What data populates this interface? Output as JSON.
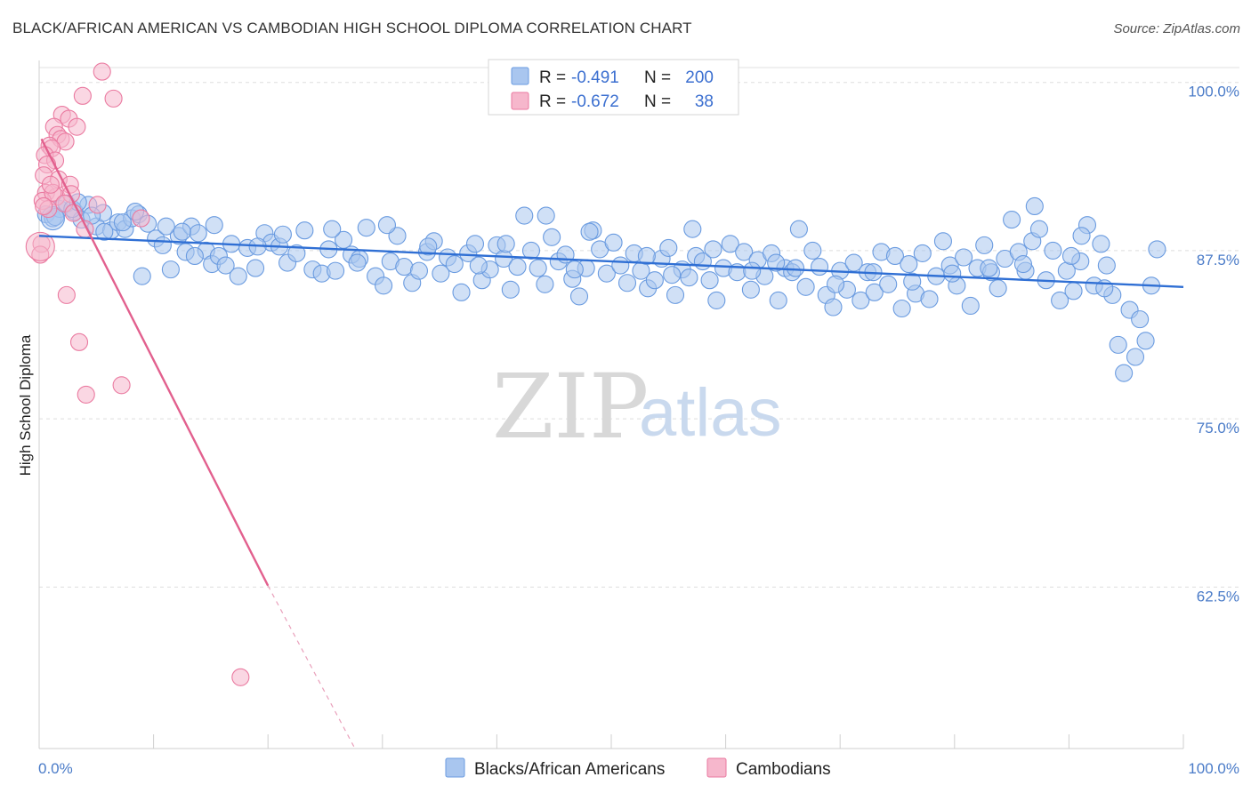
{
  "header": {
    "title": "BLACK/AFRICAN AMERICAN VS CAMBODIAN HIGH SCHOOL DIPLOMA CORRELATION CHART",
    "source": "Source: ZipAtlas.com"
  },
  "watermark": {
    "zip": "ZIP",
    "atlas": "atlas"
  },
  "legend_top": {
    "rows": [
      {
        "r_label": "R =",
        "r_value": "-0.491",
        "n_label": "N =",
        "n_value": "200",
        "color": "#a9c6ef"
      },
      {
        "r_label": "R =",
        "r_value": "-0.672",
        "n_label": "N =",
        "n_value": "38",
        "color": "#f6b7cc"
      }
    ]
  },
  "chart_data": {
    "type": "scatter",
    "title": "BLACK/AFRICAN AMERICAN VS CAMBODIAN HIGH SCHOOL DIPLOMA CORRELATION CHART",
    "xlabel": "",
    "ylabel": "High School Diploma",
    "xlim": [
      0,
      100
    ],
    "ylim": [
      50.5,
      101.5
    ],
    "x_tick_labels": [
      "0.0%",
      "100.0%"
    ],
    "y_ticks": [
      {
        "value": 100,
        "label": "100.0%"
      },
      {
        "value": 87.5,
        "label": "87.5%"
      },
      {
        "value": 75,
        "label": "75.0%"
      },
      {
        "value": 62.5,
        "label": "62.5%"
      }
    ],
    "grid": "horizontal-dashed",
    "legend_position": "top-center",
    "series": [
      {
        "name": "Blacks/African Americans",
        "color": "#6a9be0",
        "fill": "#a9c6ef",
        "trend": {
          "x0": 0,
          "y0": 88.6,
          "x1": 100,
          "y1": 84.8
        },
        "points": [
          [
            0.6,
            90.2
          ],
          [
            1.2,
            89.9
          ],
          [
            1.8,
            90.6
          ],
          [
            2.4,
            91.0
          ],
          [
            3.1,
            90.4
          ],
          [
            3.7,
            89.8
          ],
          [
            4.3,
            90.9
          ],
          [
            5.0,
            89.3
          ],
          [
            5.6,
            90.3
          ],
          [
            6.3,
            89.0
          ],
          [
            6.9,
            89.6
          ],
          [
            7.5,
            89.1
          ],
          [
            8.1,
            89.9
          ],
          [
            8.7,
            90.2
          ],
          [
            9.5,
            89.5
          ],
          [
            10.2,
            88.4
          ],
          [
            10.8,
            87.9
          ],
          [
            11.5,
            86.1
          ],
          [
            12.2,
            88.6
          ],
          [
            12.8,
            87.4
          ],
          [
            13.3,
            89.3
          ],
          [
            13.9,
            88.8
          ],
          [
            14.6,
            87.5
          ],
          [
            15.1,
            86.5
          ],
          [
            15.7,
            87.1
          ],
          [
            16.3,
            86.4
          ],
          [
            16.8,
            88.0
          ],
          [
            17.4,
            85.6
          ],
          [
            18.2,
            87.7
          ],
          [
            18.9,
            86.2
          ],
          [
            19.7,
            88.8
          ],
          [
            20.3,
            88.1
          ],
          [
            21.0,
            87.8
          ],
          [
            21.7,
            86.6
          ],
          [
            22.5,
            87.3
          ],
          [
            23.2,
            89.0
          ],
          [
            23.9,
            86.1
          ],
          [
            24.7,
            85.8
          ],
          [
            25.3,
            87.6
          ],
          [
            25.9,
            86.0
          ],
          [
            26.6,
            88.3
          ],
          [
            27.3,
            87.2
          ],
          [
            28.0,
            86.9
          ],
          [
            28.6,
            89.2
          ],
          [
            29.4,
            85.6
          ],
          [
            30.1,
            84.9
          ],
          [
            30.7,
            86.7
          ],
          [
            31.3,
            88.6
          ],
          [
            31.9,
            86.3
          ],
          [
            32.6,
            85.1
          ],
          [
            33.2,
            86.0
          ],
          [
            33.9,
            87.4
          ],
          [
            34.5,
            88.2
          ],
          [
            35.1,
            85.8
          ],
          [
            35.7,
            87.0
          ],
          [
            36.3,
            86.5
          ],
          [
            36.9,
            84.4
          ],
          [
            37.5,
            87.3
          ],
          [
            38.1,
            88.0
          ],
          [
            38.7,
            85.3
          ],
          [
            39.4,
            86.1
          ],
          [
            40.0,
            87.9
          ],
          [
            40.6,
            86.9
          ],
          [
            41.2,
            84.6
          ],
          [
            41.8,
            86.3
          ],
          [
            42.4,
            90.1
          ],
          [
            43.0,
            87.5
          ],
          [
            43.6,
            86.2
          ],
          [
            44.2,
            85.0
          ],
          [
            44.8,
            88.5
          ],
          [
            45.4,
            86.7
          ],
          [
            46.0,
            87.2
          ],
          [
            46.6,
            85.4
          ],
          [
            47.2,
            84.1
          ],
          [
            47.8,
            86.2
          ],
          [
            48.4,
            89.0
          ],
          [
            49.0,
            87.6
          ],
          [
            49.6,
            85.8
          ],
          [
            50.2,
            88.1
          ],
          [
            50.8,
            86.4
          ],
          [
            51.4,
            85.1
          ],
          [
            52.0,
            87.3
          ],
          [
            52.6,
            86.0
          ],
          [
            53.2,
            84.7
          ],
          [
            53.8,
            85.3
          ],
          [
            54.4,
            86.9
          ],
          [
            55.0,
            87.7
          ],
          [
            55.6,
            84.2
          ],
          [
            56.2,
            86.1
          ],
          [
            56.8,
            85.5
          ],
          [
            57.4,
            87.1
          ],
          [
            58.0,
            86.7
          ],
          [
            58.6,
            85.3
          ],
          [
            59.2,
            83.8
          ],
          [
            59.8,
            86.2
          ],
          [
            60.4,
            88.0
          ],
          [
            61.0,
            85.9
          ],
          [
            61.6,
            87.4
          ],
          [
            62.2,
            84.6
          ],
          [
            62.8,
            86.8
          ],
          [
            63.4,
            85.6
          ],
          [
            64.0,
            87.3
          ],
          [
            64.6,
            83.8
          ],
          [
            65.2,
            86.2
          ],
          [
            65.8,
            85.9
          ],
          [
            66.4,
            89.1
          ],
          [
            67.0,
            84.8
          ],
          [
            67.6,
            87.5
          ],
          [
            68.2,
            86.3
          ],
          [
            68.8,
            84.2
          ],
          [
            69.4,
            83.3
          ],
          [
            70.0,
            86.0
          ],
          [
            70.6,
            84.6
          ],
          [
            71.2,
            86.6
          ],
          [
            71.8,
            83.8
          ],
          [
            72.4,
            85.9
          ],
          [
            73.0,
            84.4
          ],
          [
            73.6,
            87.4
          ],
          [
            74.2,
            85.0
          ],
          [
            74.8,
            87.1
          ],
          [
            75.4,
            83.2
          ],
          [
            76.0,
            86.5
          ],
          [
            76.6,
            84.3
          ],
          [
            77.2,
            87.3
          ],
          [
            77.8,
            83.9
          ],
          [
            78.4,
            85.6
          ],
          [
            79.0,
            88.2
          ],
          [
            79.6,
            86.4
          ],
          [
            80.2,
            84.9
          ],
          [
            80.8,
            87.0
          ],
          [
            81.4,
            83.4
          ],
          [
            82.0,
            86.2
          ],
          [
            82.6,
            87.9
          ],
          [
            83.2,
            85.9
          ],
          [
            83.8,
            84.7
          ],
          [
            84.4,
            86.9
          ],
          [
            85.0,
            89.8
          ],
          [
            85.6,
            87.4
          ],
          [
            86.2,
            86.0
          ],
          [
            86.8,
            88.2
          ],
          [
            87.4,
            89.1
          ],
          [
            88.0,
            85.3
          ],
          [
            88.6,
            87.5
          ],
          [
            89.2,
            83.8
          ],
          [
            89.8,
            86.0
          ],
          [
            90.4,
            84.5
          ],
          [
            91.0,
            86.7
          ],
          [
            91.6,
            89.4
          ],
          [
            92.2,
            84.9
          ],
          [
            92.8,
            88.0
          ],
          [
            93.3,
            86.4
          ],
          [
            93.8,
            84.2
          ],
          [
            94.3,
            80.5
          ],
          [
            94.8,
            78.4
          ],
          [
            95.3,
            83.1
          ],
          [
            95.8,
            79.6
          ],
          [
            96.2,
            82.4
          ],
          [
            96.7,
            80.8
          ],
          [
            97.2,
            84.9
          ],
          [
            97.7,
            87.6
          ],
          [
            9.0,
            85.6
          ],
          [
            2.9,
            90.6
          ],
          [
            4.6,
            90.1
          ],
          [
            7.3,
            89.6
          ],
          [
            11.1,
            89.3
          ],
          [
            25.6,
            89.1
          ],
          [
            30.4,
            89.4
          ],
          [
            44.3,
            90.1
          ],
          [
            48.1,
            88.9
          ],
          [
            57.1,
            89.1
          ],
          [
            62.3,
            86.0
          ],
          [
            69.6,
            85.0
          ],
          [
            79.8,
            85.8
          ],
          [
            87.0,
            90.8
          ],
          [
            91.1,
            88.6
          ],
          [
            15.3,
            89.4
          ],
          [
            21.3,
            88.7
          ],
          [
            34.0,
            87.8
          ],
          [
            40.8,
            88.0
          ],
          [
            53.1,
            87.1
          ],
          [
            58.9,
            87.6
          ],
          [
            66.1,
            86.2
          ],
          [
            72.9,
            85.9
          ],
          [
            83.0,
            86.2
          ],
          [
            90.2,
            87.1
          ],
          [
            5.7,
            88.9
          ],
          [
            13.6,
            87.1
          ],
          [
            19.1,
            87.8
          ],
          [
            27.8,
            86.6
          ],
          [
            38.4,
            86.4
          ],
          [
            46.8,
            86.1
          ],
          [
            55.3,
            85.7
          ],
          [
            64.4,
            86.6
          ],
          [
            76.3,
            85.2
          ],
          [
            86.0,
            86.5
          ],
          [
            93.1,
            84.7
          ],
          [
            1.4,
            90.0
          ],
          [
            3.4,
            91.1
          ],
          [
            8.4,
            90.4
          ],
          [
            12.5,
            88.9
          ]
        ]
      },
      {
        "name": "Cambodians",
        "color": "#ea7aa0",
        "fill": "#f6b7cc",
        "trend": {
          "x0": 0.2,
          "y0": 95.8,
          "x1": 20.0,
          "y1": 62.6
        },
        "trend_dashed": {
          "x0": 20.0,
          "y0": 62.6,
          "x1": 27.6,
          "y1": 50.5
        },
        "points": [
          [
            5.5,
            100.8
          ],
          [
            3.8,
            99.0
          ],
          [
            6.5,
            98.8
          ],
          [
            2.0,
            97.6
          ],
          [
            2.6,
            97.3
          ],
          [
            1.3,
            96.7
          ],
          [
            3.3,
            96.7
          ],
          [
            1.6,
            96.1
          ],
          [
            1.9,
            95.8
          ],
          [
            2.3,
            95.6
          ],
          [
            0.9,
            95.3
          ],
          [
            1.1,
            95.1
          ],
          [
            0.5,
            94.6
          ],
          [
            1.4,
            94.2
          ],
          [
            0.7,
            93.9
          ],
          [
            0.4,
            93.1
          ],
          [
            1.7,
            92.8
          ],
          [
            2.7,
            92.4
          ],
          [
            0.6,
            91.8
          ],
          [
            1.5,
            91.5
          ],
          [
            0.3,
            91.2
          ],
          [
            2.8,
            91.7
          ],
          [
            5.1,
            90.9
          ],
          [
            8.9,
            89.9
          ],
          [
            0.8,
            90.6
          ],
          [
            4.0,
            89.1
          ],
          [
            0.2,
            88.0
          ],
          [
            2.4,
            84.2
          ],
          [
            3.5,
            80.7
          ],
          [
            4.1,
            76.8
          ],
          [
            7.2,
            77.5
          ],
          [
            17.6,
            55.8
          ],
          [
            1.2,
            91.8
          ],
          [
            2.2,
            91.0
          ],
          [
            3.0,
            90.3
          ],
          [
            1.0,
            92.4
          ],
          [
            0.4,
            90.8
          ],
          [
            0.1,
            87.2
          ]
        ]
      }
    ]
  },
  "legend_bottom": {
    "items": [
      {
        "label": "Blacks/African Americans",
        "color": "#a9c6ef"
      },
      {
        "label": "Cambodians",
        "color": "#f6b7cc"
      }
    ]
  }
}
